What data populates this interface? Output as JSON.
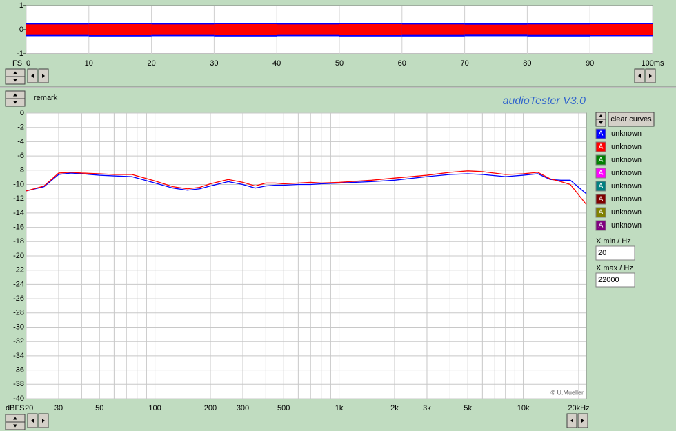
{
  "chart_data": [
    {
      "type": "band",
      "ylabel": "FS",
      "x": [
        0,
        10,
        20,
        30,
        40,
        50,
        60,
        70,
        80,
        90
      ],
      "series": [
        {
          "color": "#0000ff",
          "values": [
            0.27,
            0.28,
            0.27,
            0.28,
            0.27,
            0.28,
            0.28,
            0.27,
            0.28,
            0.27
          ]
        },
        {
          "color": "#ff0000",
          "values": [
            0.22,
            0.23,
            0.22,
            0.23,
            0.22,
            0.23,
            0.22,
            0.21,
            0.22,
            0.23
          ]
        }
      ],
      "xlim": [
        0,
        100
      ],
      "xticks": [
        0,
        10,
        20,
        30,
        40,
        50,
        60,
        70,
        80,
        90,
        {
          "value": 100,
          "label": "100ms"
        }
      ],
      "ylim": [
        -1,
        1
      ],
      "yticks": [
        1,
        0,
        -1
      ],
      "grid": true
    },
    {
      "type": "line",
      "ylabel": "dBFS",
      "log_x": true,
      "x": [
        20,
        25,
        30,
        35,
        40,
        50,
        60,
        75,
        100,
        125,
        150,
        175,
        200,
        250,
        300,
        350,
        400,
        450,
        500,
        600,
        700,
        800,
        1000,
        1500,
        2000,
        3000,
        4000,
        5000,
        6000,
        8000,
        10000,
        12000,
        14000,
        16000,
        18000,
        22000
      ],
      "series": [
        {
          "name": "unknown",
          "color": "#0000ff",
          "values": [
            -10.9,
            -10.3,
            -8.6,
            -8.4,
            -8.5,
            -8.7,
            -8.8,
            -8.9,
            -9.8,
            -10.5,
            -10.8,
            -10.6,
            -10.2,
            -9.6,
            -10.0,
            -10.5,
            -10.2,
            -10.1,
            -10.1,
            -10.0,
            -10.0,
            -9.9,
            -9.8,
            -9.6,
            -9.4,
            -8.9,
            -8.6,
            -8.5,
            -8.6,
            -8.9,
            -8.7,
            -8.5,
            -9.3,
            -9.4,
            -9.4,
            -11.3
          ]
        },
        {
          "name": "unknown",
          "color": "#ff0000",
          "values": [
            -10.9,
            -10.2,
            -8.4,
            -8.3,
            -8.4,
            -8.5,
            -8.6,
            -8.6,
            -9.5,
            -10.3,
            -10.6,
            -10.4,
            -9.9,
            -9.3,
            -9.7,
            -10.2,
            -9.8,
            -9.8,
            -9.9,
            -9.8,
            -9.7,
            -9.8,
            -9.7,
            -9.4,
            -9.1,
            -8.7,
            -8.3,
            -8.1,
            -8.2,
            -8.6,
            -8.5,
            -8.3,
            -9.2,
            -9.6,
            -10.0,
            -12.8
          ]
        },
        {
          "name": "unknown",
          "color": "#008000"
        },
        {
          "name": "unknown",
          "color": "#ff00ff"
        },
        {
          "name": "unknown",
          "color": "#008080"
        },
        {
          "name": "unknown",
          "color": "#800000"
        },
        {
          "name": "unknown",
          "color": "#808000"
        },
        {
          "name": "unknown",
          "color": "#800080"
        }
      ],
      "xlim": [
        20,
        22000
      ],
      "xticks": [
        20,
        30,
        50,
        100,
        200,
        300,
        500,
        {
          "value": 1000,
          "label": "1k"
        },
        {
          "value": 2000,
          "label": "2k"
        },
        {
          "value": 3000,
          "label": "3k"
        },
        {
          "value": 5000,
          "label": "5k"
        },
        {
          "value": 10000,
          "label": "10k"
        },
        {
          "value": 20000,
          "label": "20kHz"
        }
      ],
      "x_minor_ticks": [
        40,
        60,
        70,
        80,
        90,
        400,
        600,
        700,
        800,
        900,
        4000,
        6000,
        7000,
        8000,
        9000
      ],
      "ylim": [
        -40,
        0
      ],
      "yticks": [
        0,
        -2,
        -4,
        -6,
        -8,
        -10,
        -12,
        -14,
        -16,
        -18,
        -20,
        -22,
        -24,
        -26,
        -28,
        -30,
        -32,
        -34,
        -36,
        -38,
        -40
      ],
      "grid": true
    }
  ],
  "ui": {
    "remark": "remark",
    "app_title": "audioTester  V3.0",
    "clear_button": "clear curves",
    "legend_glyph": "A",
    "xmin_label": "X min / Hz",
    "xmin_value": "20",
    "xmax_label": "X max / Hz",
    "xmax_value": "22000",
    "credit": "© U.Mueller"
  }
}
